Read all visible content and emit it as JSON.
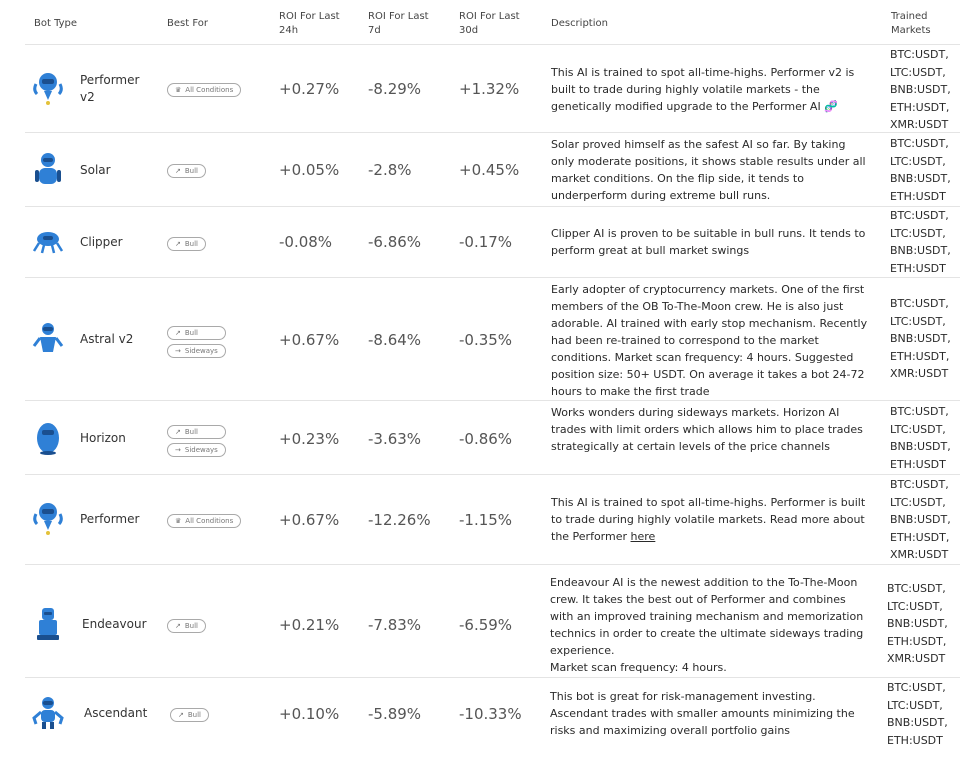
{
  "header": {
    "bot_type": "Bot Type",
    "best_for": "Best For",
    "roi_24h": "ROI For Last 24h",
    "roi_7d": "ROI For Last 7d",
    "roi_30d": "ROI For Last 30d",
    "description": "Description",
    "trained_markets": "Trained Markets"
  },
  "colors": {
    "bot_blue": "#2f80d6",
    "bot_dark": "#1a4f8f",
    "border": "#e4e4e4",
    "badge_border": "#a9a9a9"
  },
  "rows": [
    {
      "name": "Performer v2",
      "icon": "performer-robot-icon",
      "best_for": [
        {
          "label": "All Conditions",
          "icon": "crown-icon"
        }
      ],
      "roi_24h": "+0.27%",
      "roi_7d": "-8.29%",
      "roi_30d": "+1.32%",
      "description": "This AI is trained to spot all-time-highs. Performer v2 is built to trade during highly volatile markets - the genetically modified upgrade to the Performer AI 🧬",
      "markets": [
        "BTC:USDT,",
        "LTC:USDT,",
        "BNB:USDT,",
        "ETH:USDT,",
        "XMR:USDT"
      ]
    },
    {
      "name": "Solar",
      "icon": "solar-robot-icon",
      "best_for": [
        {
          "label": "Bull",
          "icon": "trend-up-icon"
        }
      ],
      "roi_24h": "+0.05%",
      "roi_7d": "-2.8%",
      "roi_30d": "+0.45%",
      "description": "Solar proved himself as the safest AI so far. By taking only moderate positions, it shows stable results under all market conditions. On the flip side, it tends to underperform during extreme bull runs.",
      "markets": [
        "BTC:USDT,",
        "LTC:USDT,",
        "BNB:USDT,",
        "ETH:USDT"
      ]
    },
    {
      "name": "Clipper",
      "icon": "clipper-robot-icon",
      "best_for": [
        {
          "label": "Bull",
          "icon": "trend-up-icon"
        }
      ],
      "roi_24h": "-0.08%",
      "roi_7d": "-6.86%",
      "roi_30d": "-0.17%",
      "description": "Clipper AI is proven to be suitable in bull runs. It tends to perform great at bull market swings",
      "markets": [
        "BTC:USDT,",
        "LTC:USDT,",
        "BNB:USDT,",
        "ETH:USDT"
      ]
    },
    {
      "name": "Astral v2",
      "icon": "astral-robot-icon",
      "best_for": [
        {
          "label": "Bull",
          "icon": "trend-up-icon"
        },
        {
          "label": "Sideways",
          "icon": "arrow-right-icon"
        }
      ],
      "roi_24h": "+0.67%",
      "roi_7d": "-8.64%",
      "roi_30d": "-0.35%",
      "description": "Early adopter of cryptocurrency markets. One of the first members of the OB To-The-Moon crew. He is also just adorable. AI trained with early stop mechanism. Recently had been re-trained to correspond to the market conditions. Market scan frequency: 4 hours. Suggested position size: 50+ USDT. On average it takes a bot 24-72 hours to make the first trade",
      "markets": [
        "BTC:USDT,",
        "LTC:USDT,",
        "BNB:USDT,",
        "ETH:USDT,",
        "XMR:USDT"
      ]
    },
    {
      "name": "Horizon",
      "icon": "horizon-robot-icon",
      "best_for": [
        {
          "label": "Bull",
          "icon": "trend-up-icon"
        },
        {
          "label": "Sideways",
          "icon": "arrow-right-icon"
        }
      ],
      "roi_24h": "+0.23%",
      "roi_7d": "-3.63%",
      "roi_30d": "-0.86%",
      "description": "Works wonders during sideways markets. Horizon AI trades with limit orders which allows him to place trades strategically at certain levels of the price channels",
      "markets": [
        "BTC:USDT,",
        "LTC:USDT,",
        "BNB:USDT,",
        "ETH:USDT"
      ]
    },
    {
      "name": "Performer",
      "icon": "performer-robot-icon",
      "best_for": [
        {
          "label": "All Conditions",
          "icon": "crown-icon"
        }
      ],
      "roi_24h": "+0.67%",
      "roi_7d": "-12.26%",
      "roi_30d": "-1.15%",
      "description": "This AI is trained to spot all-time-highs. Performer is built to trade during highly volatile markets. Read more about the Performer",
      "link": "here",
      "markets": [
        "BTC:USDT,",
        "LTC:USDT,",
        "BNB:USDT,",
        "ETH:USDT,",
        "XMR:USDT"
      ]
    },
    {
      "name": "Endeavour",
      "icon": "endeavour-robot-icon",
      "best_for": [
        {
          "label": "Bull",
          "icon": "trend-up-icon"
        }
      ],
      "roi_24h": "+0.21%",
      "roi_7d": "-7.83%",
      "roi_30d": "-6.59%",
      "description": "Endeavour AI is the newest addition to the To-The-Moon crew. It takes the best out of Performer and combines with an improved training mechanism and memorization technics in order to create the ultimate sideways trading experience.",
      "description2": "Market scan frequency: 4 hours.",
      "markets": [
        "BTC:USDT,",
        "LTC:USDT,",
        "BNB:USDT,",
        "ETH:USDT,",
        "XMR:USDT"
      ]
    },
    {
      "name": "Ascendant",
      "icon": "ascendant-robot-icon",
      "best_for": [
        {
          "label": "Bull",
          "icon": "trend-up-icon"
        }
      ],
      "roi_24h": "+0.10%",
      "roi_7d": "-5.89%",
      "roi_30d": "-10.33%",
      "description": "This bot is great for risk-management investing. Ascendant trades with smaller amounts minimizing the risks and maximizing overall portfolio gains",
      "markets": [
        "BTC:USDT,",
        "LTC:USDT,",
        "BNB:USDT,",
        "ETH:USDT"
      ]
    }
  ]
}
